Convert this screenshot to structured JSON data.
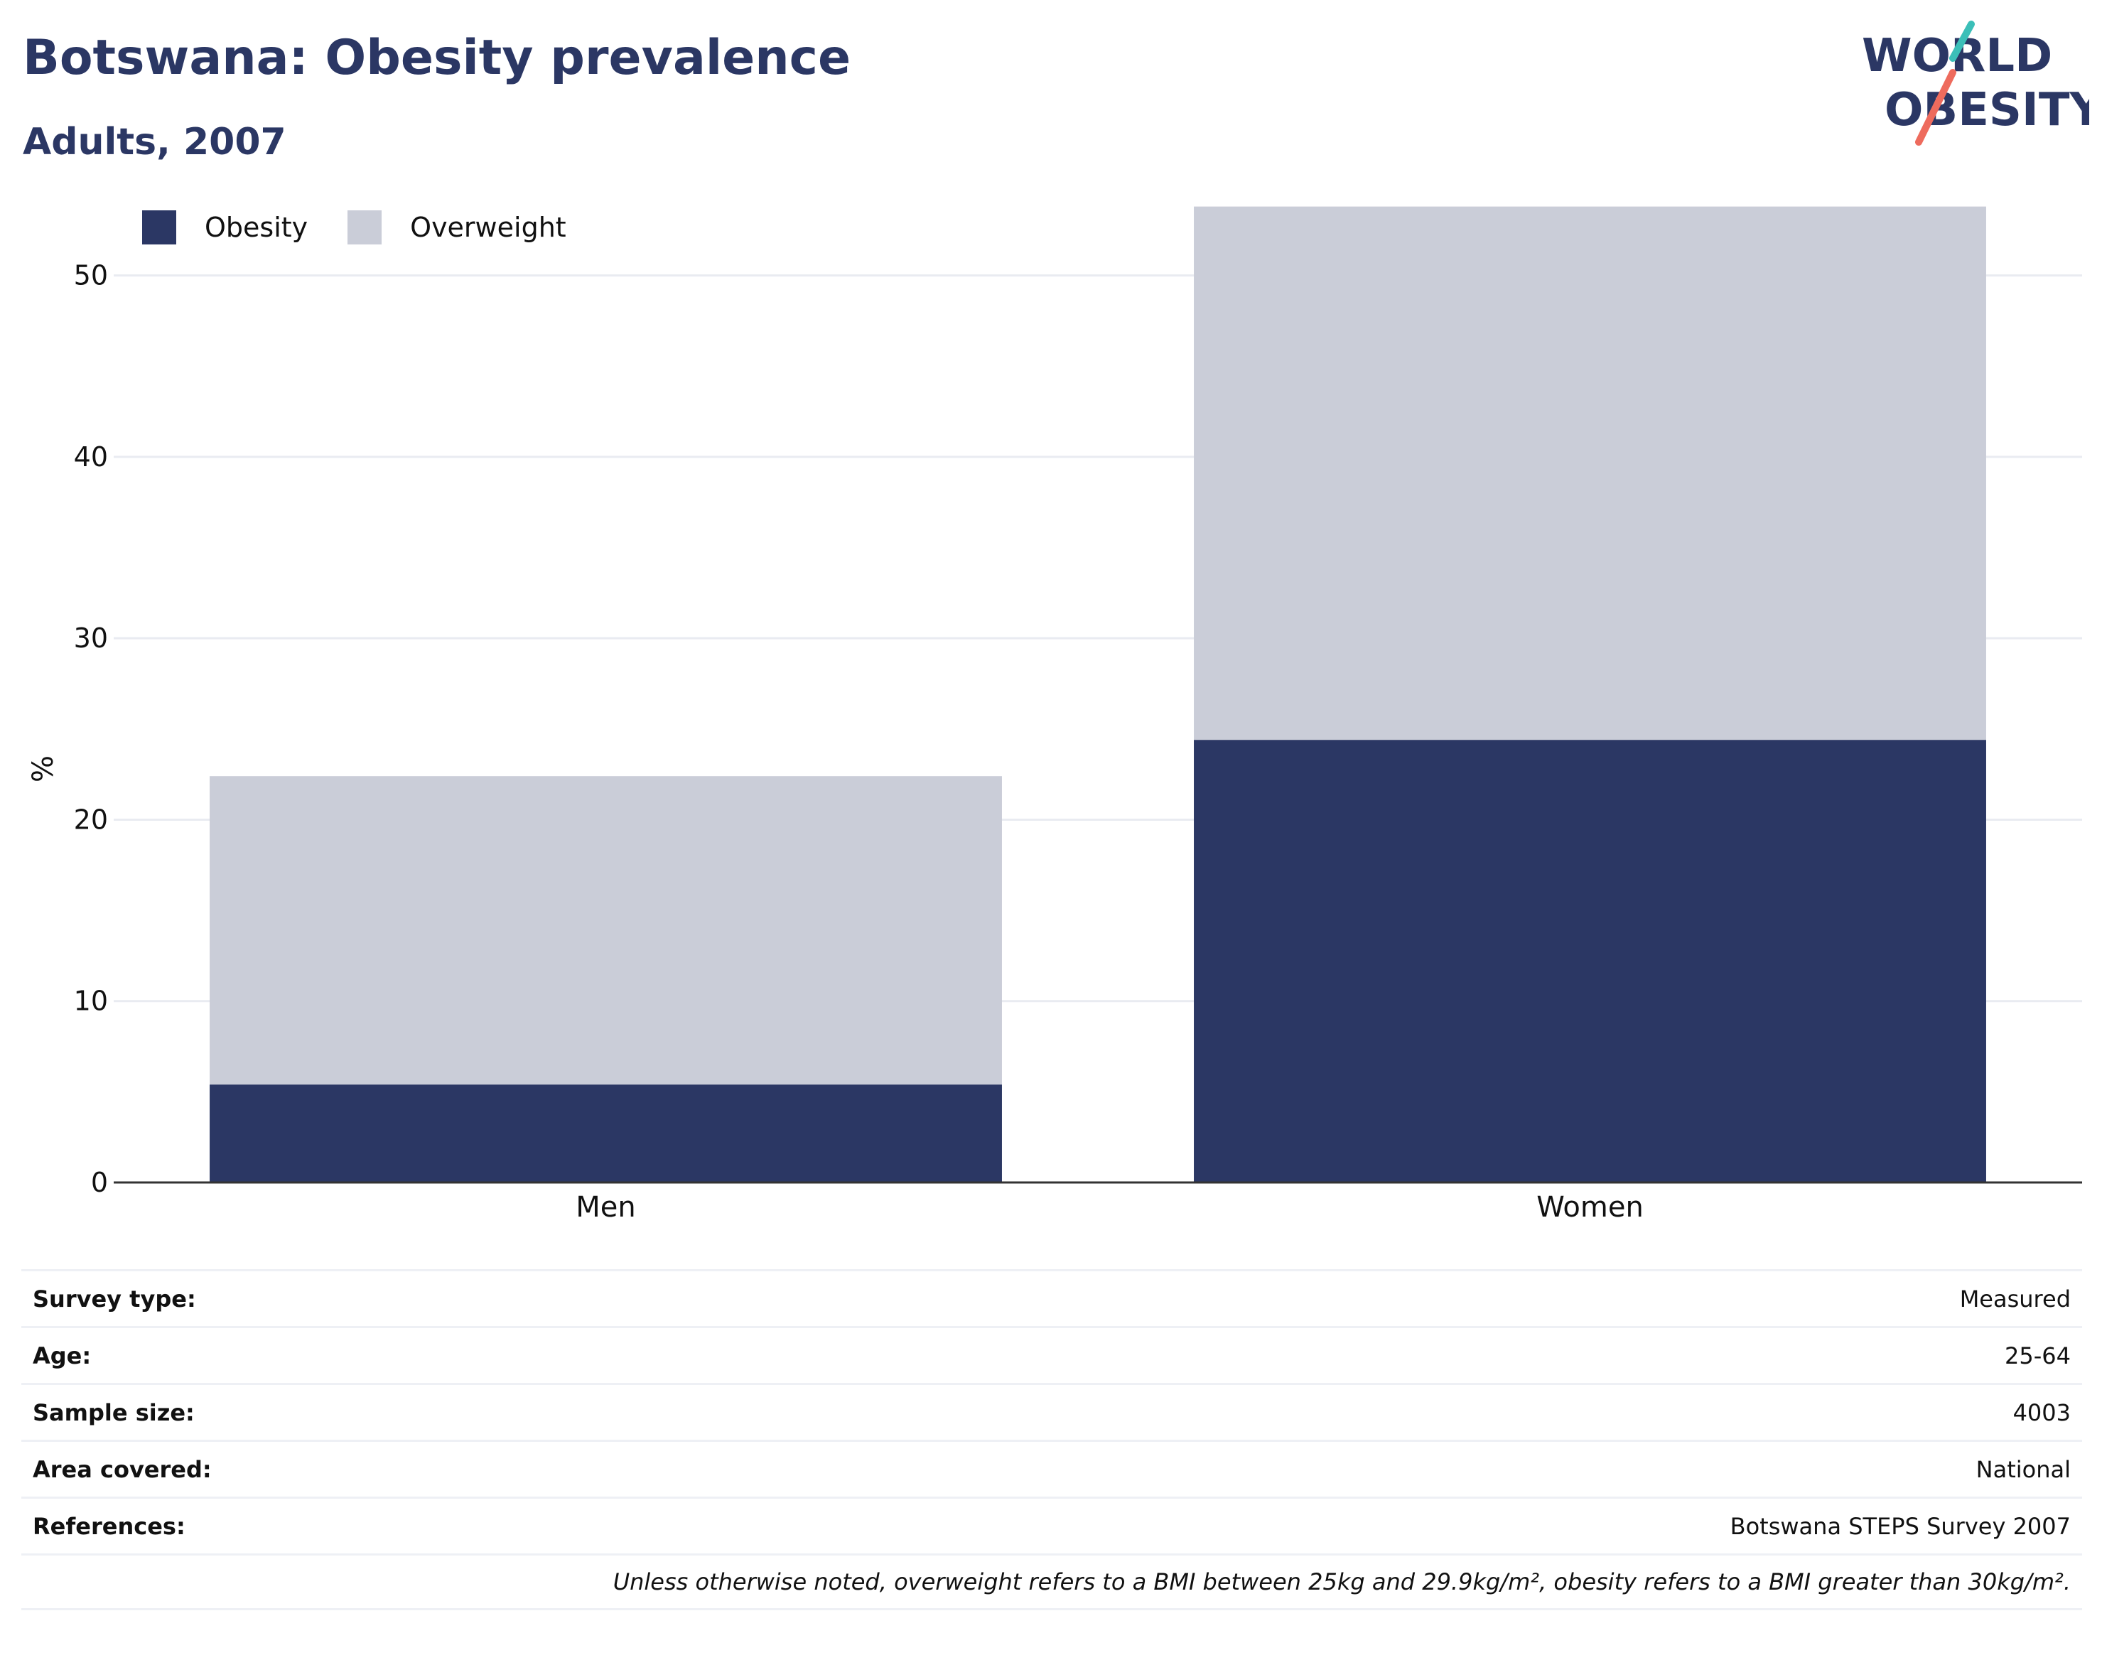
{
  "title": "Botswana: Obesity prevalence",
  "subtitle": "Adults, 2007",
  "logo": {
    "line1": "WORLD",
    "line2": "OBESITY",
    "color_navy": "#2b3764",
    "color_teal": "#3bbfb8",
    "color_coral": "#ee6b5d"
  },
  "legend": [
    {
      "label": "Obesity",
      "color": "#2b3764"
    },
    {
      "label": "Overweight",
      "color": "#cacdd8"
    }
  ],
  "chart_data": {
    "type": "bar",
    "stacked": true,
    "categories": [
      "Men",
      "Women"
    ],
    "series": [
      {
        "name": "Obesity",
        "values": [
          5.4,
          24.4
        ],
        "color": "#2b3764"
      },
      {
        "name": "Overweight",
        "values": [
          17.0,
          29.4
        ],
        "color": "#cacdd8"
      }
    ],
    "ylabel": "%",
    "xlabel": "",
    "ylim": [
      0,
      55
    ],
    "yticks": [
      0,
      10,
      20,
      30,
      40,
      50
    ],
    "grid": true,
    "legend_position": "top-left"
  },
  "meta": [
    {
      "key": "Survey type:",
      "value": "Measured"
    },
    {
      "key": "Age:",
      "value": "25-64"
    },
    {
      "key": "Sample size:",
      "value": "4003"
    },
    {
      "key": "Area covered:",
      "value": "National"
    },
    {
      "key": "References:",
      "value": "Botswana STEPS Survey 2007"
    }
  ],
  "note": "Unless otherwise noted, overweight refers to a BMI between 25kg and 29.9kg/m², obesity refers to a BMI greater than 30kg/m²."
}
